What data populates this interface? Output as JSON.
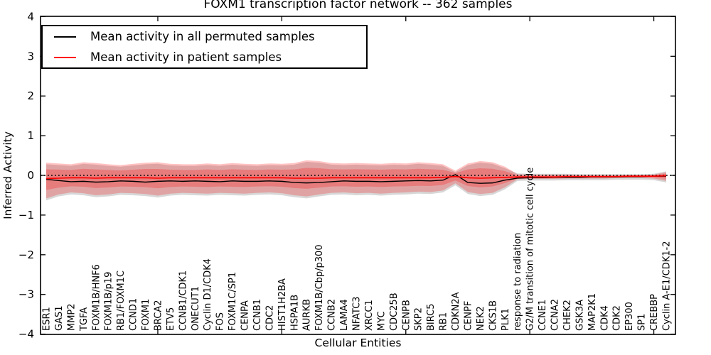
{
  "chart_data": {
    "type": "line",
    "title": "FOXM1 transcription factor network -- 362 samples",
    "xlabel": "Cellular Entities",
    "ylabel": "Inferred Activity",
    "ylim": [
      -4,
      4
    ],
    "yticks": [
      4,
      3,
      2,
      1,
      0,
      -1,
      -2,
      -3,
      -4
    ],
    "ytick_labels": [
      "4",
      "3",
      "2",
      "1",
      "0",
      "−1",
      "−2",
      "−3",
      "−4"
    ],
    "xtick_category_indexes": [
      9,
      19,
      29,
      39,
      49
    ],
    "grid": false,
    "zero_line": {
      "style": "dotted",
      "color": "#000000",
      "y": 0
    },
    "legend": {
      "position": "upper left",
      "entries": [
        {
          "label": "Mean activity in all permuted samples",
          "color": "#000000"
        },
        {
          "label": "Mean activity in patient samples",
          "color": "#ff0000"
        }
      ]
    },
    "categories": [
      "ESR1",
      "GAS1",
      "MMP2",
      "TGFA",
      "FOXM1B/HNF6",
      "FOXM1B/p19",
      "RB1/FOXM1C",
      "CCND1",
      "FOXM1",
      "BRCA2",
      "ETV5",
      "CCNB1/CDK1",
      "ONECUT1",
      "Cyclin D1/CDK4",
      "FOS",
      "FOXM1C/SP1",
      "CENPA",
      "CCNB1",
      "CDC2",
      "HIST1H2BA",
      "HSPA1B",
      "AURKB",
      "FOXM1B/Cbp/p300",
      "CCNB2",
      "LAMA4",
      "NFATC3",
      "XRCC1",
      "MYC",
      "CDC25B",
      "CENPB",
      "SKP2",
      "BIRC5",
      "RB1",
      "CDKN2A",
      "CENPF",
      "NEK2",
      "CKS1B",
      "PLK1",
      "response to radiation",
      "G2/M transition of mitotic cell cycle",
      "CCNE1",
      "CCNA2",
      "CHEK2",
      "GSK3A",
      "MAP2K1",
      "CDK4",
      "CDK2",
      "EP300",
      "SP1",
      "CREBBP",
      "Cyclin A-E1/CDK1-2"
    ],
    "series": [
      {
        "name": "Mean activity in all permuted samples",
        "kind": "line",
        "color": "#000000",
        "values": [
          -0.1,
          -0.13,
          -0.16,
          -0.15,
          -0.17,
          -0.16,
          -0.14,
          -0.15,
          -0.17,
          -0.15,
          -0.14,
          -0.15,
          -0.14,
          -0.15,
          -0.16,
          -0.14,
          -0.15,
          -0.15,
          -0.14,
          -0.15,
          -0.18,
          -0.19,
          -0.18,
          -0.16,
          -0.14,
          -0.15,
          -0.15,
          -0.16,
          -0.15,
          -0.14,
          -0.13,
          -0.14,
          -0.12,
          0.02,
          -0.18,
          -0.2,
          -0.19,
          -0.12,
          -0.07,
          -0.06,
          -0.06,
          -0.05,
          -0.05,
          -0.05,
          -0.04,
          -0.04,
          -0.04,
          -0.03,
          -0.03,
          -0.02,
          -0.02
        ]
      },
      {
        "name": "Mean activity in patient samples",
        "kind": "line",
        "color": "#ff0000",
        "values": [
          -0.08,
          -0.07,
          -0.06,
          -0.06,
          -0.07,
          -0.06,
          -0.06,
          -0.06,
          -0.06,
          -0.07,
          -0.06,
          -0.06,
          -0.06,
          -0.06,
          -0.06,
          -0.06,
          -0.06,
          -0.06,
          -0.06,
          -0.06,
          -0.07,
          -0.07,
          -0.07,
          -0.06,
          -0.06,
          -0.06,
          -0.06,
          -0.06,
          -0.06,
          -0.06,
          -0.06,
          -0.06,
          -0.05,
          -0.03,
          -0.06,
          -0.07,
          -0.06,
          -0.05,
          -0.04,
          -0.04,
          -0.04,
          -0.04,
          -0.03,
          -0.03,
          -0.03,
          -0.03,
          -0.03,
          -0.02,
          -0.02,
          -0.02,
          -0.01
        ]
      },
      {
        "name": "patient samples band (std)",
        "kind": "band",
        "color": "rgba(255,0,0,0.24)",
        "upper": [
          0.32,
          0.3,
          0.28,
          0.33,
          0.31,
          0.28,
          0.26,
          0.29,
          0.32,
          0.33,
          0.29,
          0.28,
          0.28,
          0.3,
          0.28,
          0.31,
          0.29,
          0.28,
          0.3,
          0.29,
          0.31,
          0.38,
          0.36,
          0.31,
          0.3,
          0.31,
          0.3,
          0.29,
          0.31,
          0.3,
          0.33,
          0.31,
          0.28,
          0.12,
          0.3,
          0.36,
          0.33,
          0.22,
          0.03,
          0.02,
          0.02,
          0.02,
          0.02,
          0.01,
          0.01,
          0.01,
          0.01,
          0.01,
          0.01,
          0.02,
          0.08
        ],
        "lower": [
          -0.58,
          -0.48,
          -0.43,
          -0.45,
          -0.5,
          -0.48,
          -0.44,
          -0.45,
          -0.47,
          -0.51,
          -0.46,
          -0.44,
          -0.45,
          -0.46,
          -0.44,
          -0.45,
          -0.46,
          -0.44,
          -0.43,
          -0.45,
          -0.5,
          -0.53,
          -0.48,
          -0.44,
          -0.43,
          -0.45,
          -0.44,
          -0.46,
          -0.44,
          -0.43,
          -0.41,
          -0.42,
          -0.38,
          -0.2,
          -0.42,
          -0.47,
          -0.44,
          -0.3,
          -0.1,
          -0.09,
          -0.09,
          -0.09,
          -0.08,
          -0.08,
          -0.08,
          -0.08,
          -0.07,
          -0.07,
          -0.07,
          -0.08,
          -0.14
        ]
      },
      {
        "name": "permuted samples band (std)",
        "kind": "band",
        "color": "rgba(100,100,100,0.26)",
        "upper": [
          0.28,
          0.26,
          0.24,
          0.29,
          0.27,
          0.24,
          0.22,
          0.25,
          0.28,
          0.29,
          0.25,
          0.24,
          0.24,
          0.26,
          0.24,
          0.27,
          0.25,
          0.24,
          0.26,
          0.25,
          0.27,
          0.34,
          0.32,
          0.27,
          0.26,
          0.27,
          0.26,
          0.25,
          0.27,
          0.26,
          0.29,
          0.27,
          0.24,
          0.08,
          0.26,
          0.32,
          0.29,
          0.18,
          0.05,
          0.04,
          0.04,
          0.04,
          0.04,
          0.03,
          0.03,
          0.03,
          0.03,
          0.03,
          0.03,
          0.04,
          0.1
        ],
        "lower": [
          -0.63,
          -0.53,
          -0.48,
          -0.5,
          -0.55,
          -0.53,
          -0.49,
          -0.5,
          -0.52,
          -0.56,
          -0.51,
          -0.49,
          -0.5,
          -0.51,
          -0.49,
          -0.5,
          -0.51,
          -0.49,
          -0.48,
          -0.5,
          -0.55,
          -0.58,
          -0.53,
          -0.49,
          -0.48,
          -0.5,
          -0.49,
          -0.51,
          -0.49,
          -0.48,
          -0.46,
          -0.47,
          -0.43,
          -0.25,
          -0.47,
          -0.52,
          -0.49,
          -0.35,
          -0.14,
          -0.13,
          -0.13,
          -0.13,
          -0.12,
          -0.12,
          -0.12,
          -0.12,
          -0.11,
          -0.11,
          -0.11,
          -0.12,
          -0.18
        ]
      }
    ]
  }
}
